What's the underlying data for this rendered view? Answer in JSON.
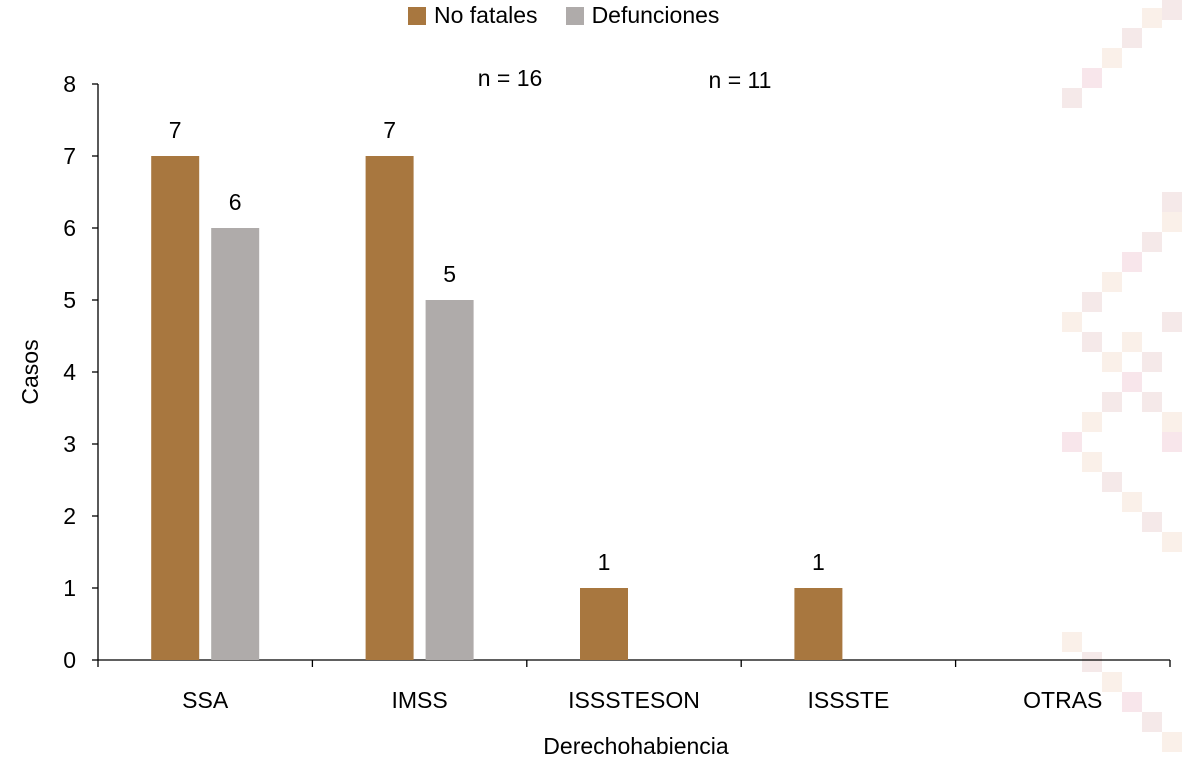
{
  "chart_data": {
    "type": "bar",
    "title": "",
    "xlabel": "Derechohabiencia",
    "ylabel": "Casos",
    "ylim": [
      0,
      8
    ],
    "yticks": [
      0,
      1,
      2,
      3,
      4,
      5,
      6,
      7,
      8
    ],
    "categories": [
      "SSA",
      "IMSS",
      "ISSSTESON",
      "ISSSTE",
      "OTRAS"
    ],
    "series": [
      {
        "name": "No fatales",
        "color": "#a8773f",
        "values": [
          7,
          7,
          1,
          1,
          0
        ]
      },
      {
        "name": "Defunciones",
        "color": "#afabaa",
        "values": [
          6,
          5,
          0,
          0,
          0
        ]
      }
    ],
    "annotations": [
      "n = 16",
      "n = 11"
    ],
    "legend_position": "top-center",
    "grid": false
  }
}
